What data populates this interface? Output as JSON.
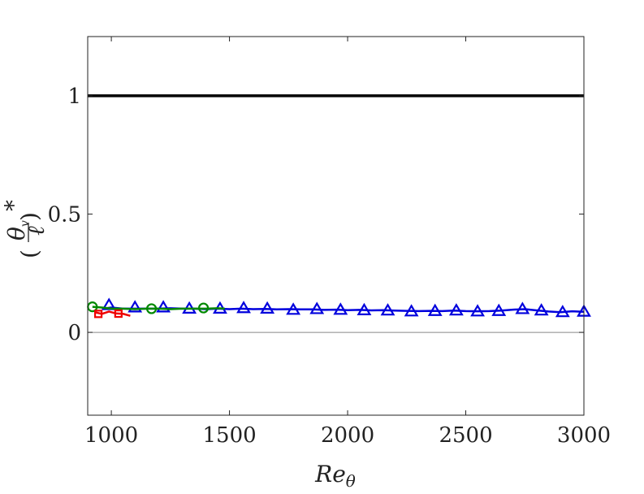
{
  "chart_data": {
    "type": "line",
    "title": "",
    "xlabel": "Re",
    "xlabel_sub": "θ",
    "ylabel": {
      "open": "(",
      "num": "θ",
      "num_sub": "v",
      "den": "ℓ",
      "close": ")",
      "sup": "*"
    },
    "xlim": [
      900,
      3000
    ],
    "ylim": [
      -0.35,
      1.25
    ],
    "x_ticks": [
      1000,
      1500,
      2000,
      2500,
      3000
    ],
    "x_tick_labels": [
      "1000",
      "1500",
      "2000",
      "2500",
      "3000"
    ],
    "y_ticks": [
      0,
      0.5,
      1
    ],
    "y_tick_labels": [
      "0",
      "0.5",
      "1"
    ],
    "grid": false,
    "legend": null,
    "reference_lines": [
      {
        "y": 1,
        "color": "#000000",
        "width": 3.5
      },
      {
        "y": 0,
        "color": "#888888",
        "width": 1
      }
    ],
    "series": [
      {
        "color": "#0000dd",
        "marker": "triangle",
        "x": [
          960,
          1000,
          1050,
          1100,
          1150,
          1200,
          1250,
          1300,
          1350,
          1400,
          1450,
          1500,
          1550,
          1600,
          1650,
          1700,
          1750,
          1800,
          1850,
          1900,
          1950,
          2000,
          2050,
          2100,
          2150,
          2200,
          2250,
          2300,
          2350,
          2400,
          2450,
          2500,
          2550,
          2600,
          2650,
          2700,
          2750,
          2800,
          2850,
          2900,
          2950,
          3000
        ],
        "y": [
          0.1,
          0.105,
          0.1,
          0.1,
          0.1,
          0.1,
          0.102,
          0.1,
          0.1,
          0.098,
          0.1,
          0.098,
          0.1,
          0.098,
          0.099,
          0.097,
          0.098,
          0.097,
          0.097,
          0.095,
          0.096,
          0.094,
          0.095,
          0.093,
          0.094,
          0.092,
          0.091,
          0.09,
          0.091,
          0.09,
          0.092,
          0.09,
          0.089,
          0.09,
          0.092,
          0.096,
          0.098,
          0.093,
          0.088,
          0.085,
          0.089,
          0.087
        ],
        "marker_x": [
          990,
          1100,
          1220,
          1330,
          1460,
          1560,
          1660,
          1770,
          1870,
          1970,
          2070,
          2170,
          2270,
          2370,
          2460,
          2550,
          2640,
          2740,
          2820,
          2910,
          3000
        ],
        "marker_y": [
          0.115,
          0.105,
          0.105,
          0.1,
          0.1,
          0.102,
          0.1,
          0.095,
          0.098,
          0.095,
          0.093,
          0.092,
          0.088,
          0.09,
          0.092,
          0.088,
          0.09,
          0.098,
          0.092,
          0.085,
          0.087
        ]
      },
      {
        "color": "#008800",
        "marker": "circle",
        "x": [
          920,
          960,
          1000,
          1050,
          1100,
          1150,
          1200,
          1250,
          1300,
          1350,
          1400,
          1450,
          1480
        ],
        "y": [
          0.108,
          0.105,
          0.1,
          0.1,
          0.098,
          0.1,
          0.1,
          0.098,
          0.1,
          0.1,
          0.1,
          0.102,
          0.1
        ],
        "marker_x": [
          920,
          1170,
          1390
        ],
        "marker_y": [
          0.108,
          0.1,
          0.103
        ]
      },
      {
        "color": "#ee0000",
        "marker": "square",
        "x": [
          930,
          960,
          990,
          1020,
          1050,
          1080
        ],
        "y": [
          0.085,
          0.078,
          0.088,
          0.08,
          0.078,
          0.07
        ],
        "marker_x": [
          945,
          1030
        ],
        "marker_y": [
          0.078,
          0.079
        ]
      }
    ]
  }
}
